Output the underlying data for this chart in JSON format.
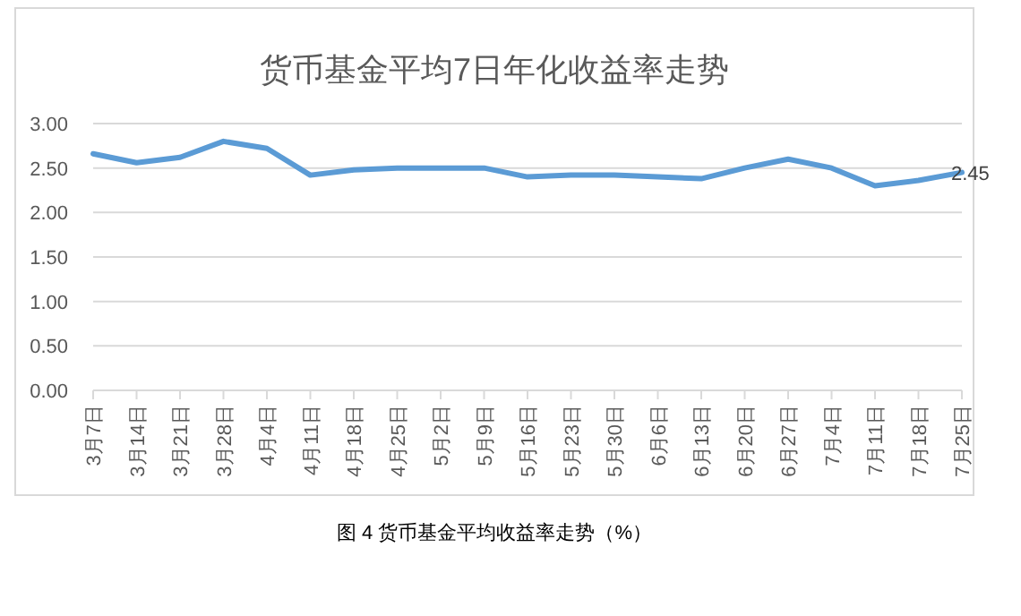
{
  "chart_data": {
    "type": "line",
    "title": "货币基金平均7日年化收益率走势",
    "categories": [
      "3月7日",
      "3月14日",
      "3月21日",
      "3月28日",
      "4月4日",
      "4月11日",
      "4月18日",
      "4月25日",
      "5月2日",
      "5月9日",
      "5月16日",
      "5月23日",
      "5月30日",
      "6月6日",
      "6月13日",
      "6月20日",
      "6月27日",
      "7月4日",
      "7月11日",
      "7月18日",
      "7月25日"
    ],
    "series": [
      {
        "color": "#5b9bd5",
        "values": [
          2.66,
          2.56,
          2.62,
          2.8,
          2.72,
          2.42,
          2.48,
          2.5,
          2.5,
          2.5,
          2.4,
          2.42,
          2.42,
          2.4,
          2.38,
          2.5,
          2.6,
          2.5,
          2.3,
          2.36,
          2.45
        ],
        "value_labels": [
          null,
          null,
          null,
          null,
          null,
          null,
          null,
          null,
          null,
          null,
          null,
          null,
          null,
          null,
          null,
          null,
          null,
          null,
          null,
          null,
          "2.45"
        ]
      }
    ],
    "ylim": [
      0,
      3
    ],
    "yticks": [
      {
        "value": 0,
        "label": "0.00"
      },
      {
        "value": 0.5,
        "label": "0.50"
      },
      {
        "value": 1,
        "label": "1.00"
      },
      {
        "value": 1.5,
        "label": "1.50"
      },
      {
        "value": 2,
        "label": "2.00"
      },
      {
        "value": 2.5,
        "label": "2.50"
      },
      {
        "value": 3,
        "label": "3.00"
      }
    ],
    "grid": "y",
    "marker": "none",
    "line_style": "solid",
    "annotations": [
      "图 4 货币基金平均收益率走势（%）"
    ]
  }
}
